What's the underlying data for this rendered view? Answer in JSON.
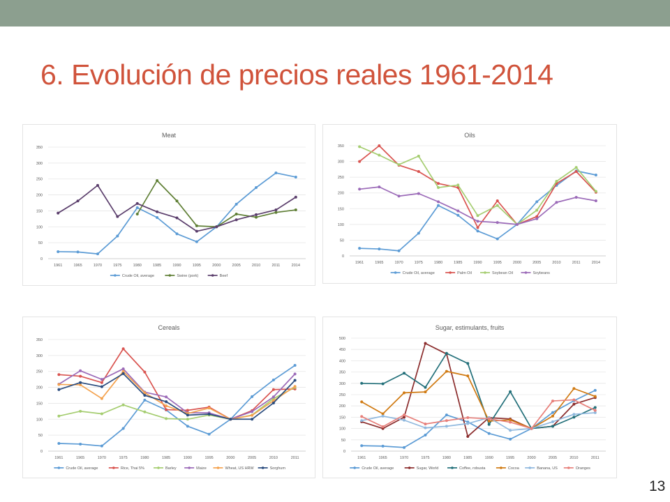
{
  "slide": {
    "title": "6. Evolución de precios reales 1961-2014",
    "number": "13",
    "colors": {
      "topbar": "#8c9f8f",
      "title": "#d0533b"
    }
  },
  "chart_data": [
    {
      "type": "line",
      "title": "Meat",
      "categories": [
        "1961",
        "1965",
        "1970",
        "1975",
        "1980",
        "1985",
        "1990",
        "1995",
        "2000",
        "2005",
        "2010",
        "2011",
        "2014"
      ],
      "ylim": [
        0,
        350
      ],
      "yticks": [
        0,
        50,
        100,
        150,
        200,
        250,
        300,
        350
      ],
      "grid": true,
      "legend": "bottom",
      "series": [
        {
          "name": "Crude Oil, average",
          "color": "#5b9bd5",
          "values": [
            22,
            21,
            15,
            71,
            160,
            129,
            78,
            53,
            100,
            171,
            223,
            269,
            256
          ]
        },
        {
          "name": "Swine (pork)",
          "color": "#5f7f35",
          "values": [
            null,
            null,
            null,
            null,
            140,
            245,
            181,
            103,
            100,
            140,
            130,
            145,
            153
          ]
        },
        {
          "name": "Beef",
          "color": "#5a3d6b",
          "values": [
            143,
            181,
            230,
            132,
            173,
            147,
            128,
            86,
            100,
            122,
            138,
            153,
            193
          ]
        }
      ]
    },
    {
      "type": "line",
      "title": "Oils",
      "categories": [
        "1961",
        "1965",
        "1970",
        "1975",
        "1980",
        "1985",
        "1990",
        "1995",
        "2000",
        "2005",
        "2010",
        "2011",
        "2014"
      ],
      "ylim": [
        0,
        350
      ],
      "yticks": [
        0,
        50,
        100,
        150,
        200,
        250,
        300,
        350
      ],
      "grid": true,
      "legend": "bottom",
      "series": [
        {
          "name": "Crude Oil, average",
          "color": "#5b9bd5",
          "values": [
            24,
            22,
            16,
            72,
            160,
            129,
            79,
            54,
            100,
            172,
            224,
            270,
            257
          ]
        },
        {
          "name": "Palm Oil",
          "color": "#d9534f",
          "values": [
            300,
            350,
            288,
            268,
            230,
            217,
            90,
            175,
            100,
            125,
            230,
            268,
            202
          ]
        },
        {
          "name": "Soybean Oil",
          "color": "#a5cd70",
          "values": [
            347,
            320,
            290,
            317,
            217,
            225,
            128,
            160,
            100,
            145,
            237,
            281,
            205
          ]
        },
        {
          "name": "Soybeans",
          "color": "#9b6ab8",
          "values": [
            212,
            219,
            190,
            198,
            172,
            143,
            110,
            106,
            100,
            118,
            170,
            186,
            175
          ]
        }
      ]
    },
    {
      "type": "line",
      "title": "Cereals",
      "categories": [
        "1961",
        "1965",
        "1970",
        "1975",
        "1980",
        "1985",
        "1990",
        "1995",
        "2000",
        "2005",
        "2010",
        "2011"
      ],
      "ylim": [
        0,
        350
      ],
      "yticks": [
        0,
        50,
        100,
        150,
        200,
        250,
        300,
        350
      ],
      "grid": true,
      "legend": "bottom",
      "series": [
        {
          "name": "Crude Oil, average",
          "color": "#5b9bd5",
          "values": [
            24,
            22,
            16,
            71,
            160,
            129,
            78,
            53,
            100,
            171,
            223,
            269
          ]
        },
        {
          "name": "Rice, Thai 5%",
          "color": "#d9534f",
          "values": [
            240,
            235,
            215,
            321,
            248,
            130,
            128,
            138,
            100,
            127,
            193,
            195
          ]
        },
        {
          "name": "Barley",
          "color": "#a5cd70",
          "values": [
            110,
            125,
            117,
            145,
            123,
            102,
            100,
            113,
            100,
            113,
            165,
            200
          ]
        },
        {
          "name": "Maize",
          "color": "#9b6ab8",
          "values": [
            210,
            252,
            225,
            258,
            185,
            170,
            120,
            120,
            100,
            124,
            170,
            242
          ]
        },
        {
          "name": "Wheat, US HRW",
          "color": "#f4a24e",
          "values": [
            209,
            208,
            165,
            250,
            183,
            142,
            118,
            135,
            100,
            112,
            158,
            203
          ]
        },
        {
          "name": "Sorghum",
          "color": "#2b4c7e",
          "values": [
            193,
            215,
            202,
            243,
            175,
            155,
            113,
            116,
            100,
            100,
            151,
            222
          ]
        }
      ]
    },
    {
      "type": "line",
      "title": "Sugar, estimulants, fruits",
      "categories": [
        "1961",
        "1965",
        "1970",
        "1975",
        "1980",
        "1985",
        "1990",
        "1995",
        "2000",
        "2005",
        "2010",
        "2011"
      ],
      "ylim": [
        0,
        500
      ],
      "yticks": [
        0,
        50,
        100,
        150,
        200,
        250,
        300,
        350,
        400,
        450,
        500
      ],
      "grid": true,
      "legend": "bottom",
      "series": [
        {
          "name": "Crude Oil, average",
          "color": "#5b9bd5",
          "values": [
            24,
            22,
            16,
            71,
            160,
            129,
            78,
            53,
            100,
            171,
            223,
            269
          ]
        },
        {
          "name": "Sugar, World",
          "color": "#8b2c2c",
          "values": [
            130,
            100,
            150,
            477,
            430,
            65,
            148,
            142,
            100,
            110,
            208,
            237
          ]
        },
        {
          "name": "Coffee, robusta",
          "color": "#23707a",
          "values": [
            300,
            298,
            345,
            282,
            433,
            388,
            118,
            263,
            100,
            110,
            150,
            193
          ]
        },
        {
          "name": "Cocoa",
          "color": "#d07a12",
          "values": [
            218,
            165,
            258,
            262,
            353,
            333,
            133,
            138,
            100,
            155,
            277,
            242
          ]
        },
        {
          "name": "Banana, US",
          "color": "#8fb8de",
          "values": [
            135,
            155,
            137,
            103,
            110,
            122,
            148,
            92,
            100,
            130,
            163,
            170
          ]
        },
        {
          "name": "Oranges",
          "color": "#e77f7a",
          "values": [
            153,
            108,
            160,
            120,
            135,
            148,
            143,
            128,
            100,
            222,
            227,
            180
          ]
        }
      ]
    }
  ]
}
